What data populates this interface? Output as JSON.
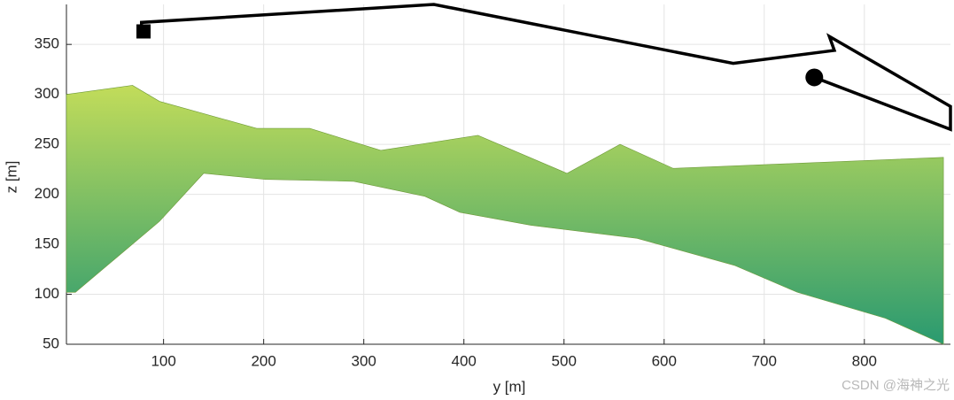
{
  "chart_data": {
    "type": "line",
    "xlabel": "y [m]",
    "ylabel": "z [m]",
    "xlim": [
      3,
      886
    ],
    "ylim": [
      50,
      390
    ],
    "xticks": [
      100,
      200,
      300,
      400,
      500,
      600,
      700,
      800
    ],
    "yticks": [
      50,
      100,
      150,
      200,
      250,
      300,
      350
    ],
    "grid": true,
    "series": [
      {
        "color": "#000000",
        "x": [
          78,
          78,
          370,
          669,
          770,
          765,
          886,
          886,
          750
        ],
        "values": [
          363,
          372,
          390,
          331,
          344,
          358,
          288,
          265,
          317
        ]
      }
    ],
    "start": {
      "x": 80,
      "value": 363,
      "color": "#000000"
    },
    "end": {
      "x": 750,
      "value": 317,
      "color": "#000000"
    },
    "terrain": {
      "top_color": "#c2dc5a",
      "bottom_color": "#2a9a70",
      "top_x": [
        3,
        69,
        96,
        193,
        246,
        317,
        414,
        503,
        556,
        609,
        733,
        879
      ],
      "top_z": [
        300,
        309,
        293,
        266,
        266,
        244,
        259,
        221,
        250,
        226,
        231,
        237
      ],
      "bottom_x": [
        3,
        12,
        96,
        140,
        202,
        290,
        361,
        396,
        467,
        573,
        670,
        733,
        821,
        879
      ],
      "bottom_z": [
        102,
        102,
        173,
        221,
        215,
        213,
        198,
        182,
        169,
        156,
        129,
        102,
        76,
        50
      ]
    },
    "watermark": "CSDN @海神之光"
  }
}
